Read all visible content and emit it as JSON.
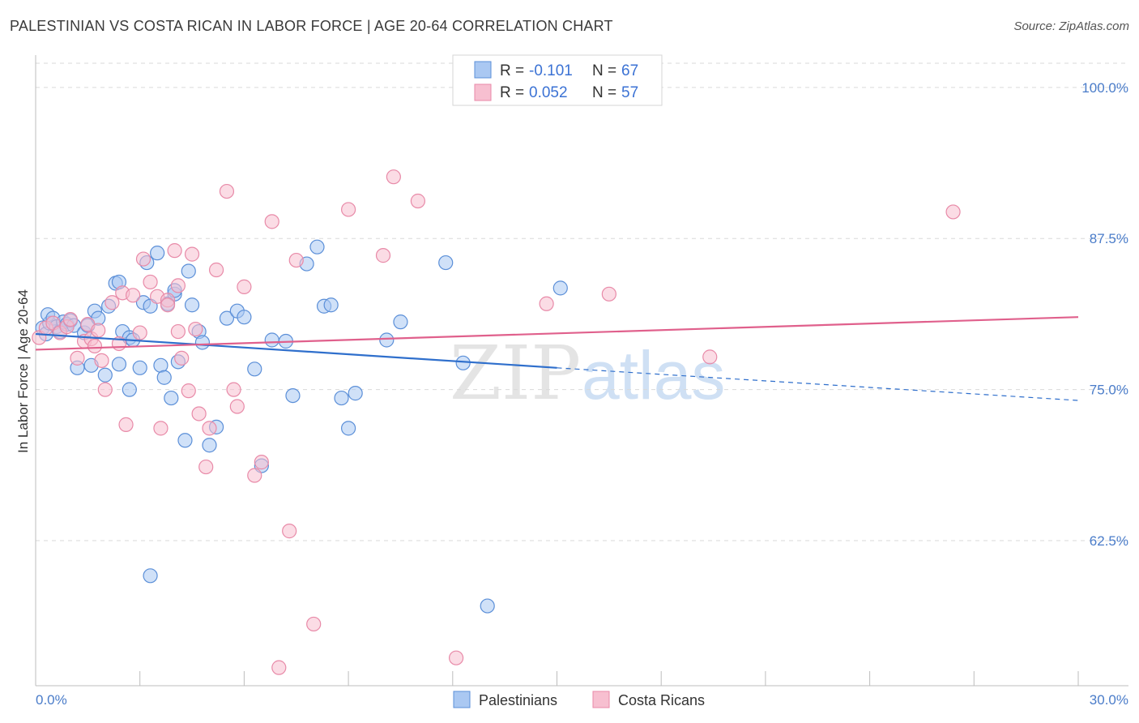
{
  "header": {
    "title": "PALESTINIAN VS COSTA RICAN IN LABOR FORCE | AGE 20-64 CORRELATION CHART",
    "source": "Source: ZipAtlas.com"
  },
  "watermark": {
    "zip": "ZIP",
    "atlas": "atlas"
  },
  "colors": {
    "blue_fill": "#aac8f2",
    "blue_stroke": "#5b8fd8",
    "blue_line": "#2f6fcc",
    "pink_fill": "#f7bfd0",
    "pink_stroke": "#e88aa8",
    "pink_line": "#e0608c",
    "grid": "#d9d9d9",
    "axis_label": "#4a7cc9"
  },
  "legend": {
    "rows": [
      {
        "r_label": "R =",
        "r_value": "-0.101",
        "n_label": "N =",
        "n_value": "67",
        "series": "blue"
      },
      {
        "r_label": "R =",
        "r_value": "0.052",
        "n_label": "N =",
        "n_value": "57",
        "series": "pink"
      }
    ]
  },
  "bottom_legend": [
    {
      "label": "Palestinians",
      "series": "blue"
    },
    {
      "label": "Costa Ricans",
      "series": "pink"
    }
  ],
  "chart_data": {
    "type": "scatter",
    "title": "PALESTINIAN VS COSTA RICAN IN LABOR FORCE | AGE 20-64 CORRELATION CHART",
    "xlabel": "",
    "ylabel": "In Labor Force | Age 20-64",
    "xlim": [
      0,
      30
    ],
    "ylim": [
      50.5,
      102
    ],
    "x_tick_labels": [
      "0.0%",
      "30.0%"
    ],
    "y_ticks": [
      62.5,
      75.0,
      87.5,
      100.0
    ],
    "y_tick_labels": [
      "62.5%",
      "75.0%",
      "87.5%",
      "100.0%"
    ],
    "grid": true,
    "series": [
      {
        "name": "Palestinians",
        "color": "blue",
        "r": -0.101,
        "n": 67,
        "trend": {
          "x0": 0,
          "y0": 79.6,
          "x1": 15,
          "y1": 76.8,
          "dash_x1": 30,
          "dash_y1": 74.1
        },
        "points": [
          [
            0.2,
            80.1
          ],
          [
            0.3,
            79.6
          ],
          [
            0.4,
            80.5
          ],
          [
            0.35,
            81.2
          ],
          [
            0.5,
            80.9
          ],
          [
            0.6,
            80.2
          ],
          [
            0.7,
            79.8
          ],
          [
            0.8,
            80.6
          ],
          [
            0.9,
            80.4
          ],
          [
            1.0,
            80.7
          ],
          [
            1.1,
            80.3
          ],
          [
            1.2,
            76.8
          ],
          [
            1.4,
            79.7
          ],
          [
            1.5,
            80.3
          ],
          [
            1.6,
            77.0
          ],
          [
            1.7,
            81.5
          ],
          [
            1.8,
            80.9
          ],
          [
            2.0,
            76.2
          ],
          [
            2.1,
            81.9
          ],
          [
            2.3,
            83.8
          ],
          [
            2.4,
            77.1
          ],
          [
            2.5,
            79.8
          ],
          [
            2.7,
            79.3
          ],
          [
            2.8,
            79.1
          ],
          [
            3.0,
            76.8
          ],
          [
            3.1,
            82.2
          ],
          [
            3.2,
            85.5
          ],
          [
            3.3,
            81.9
          ],
          [
            3.5,
            86.3
          ],
          [
            3.6,
            77.0
          ],
          [
            3.7,
            76.0
          ],
          [
            3.8,
            82.1
          ],
          [
            3.9,
            74.3
          ],
          [
            4.0,
            82.9
          ],
          [
            4.1,
            77.3
          ],
          [
            4.3,
            70.8
          ],
          [
            4.4,
            84.8
          ],
          [
            4.5,
            82.0
          ],
          [
            4.7,
            79.8
          ],
          [
            4.8,
            78.9
          ],
          [
            5.0,
            70.4
          ],
          [
            5.2,
            71.9
          ],
          [
            5.5,
            80.9
          ],
          [
            5.8,
            81.5
          ],
          [
            6.0,
            81.0
          ],
          [
            6.3,
            76.7
          ],
          [
            6.5,
            68.7
          ],
          [
            6.8,
            79.1
          ],
          [
            7.2,
            79.0
          ],
          [
            7.4,
            74.5
          ],
          [
            7.8,
            85.4
          ],
          [
            8.1,
            86.8
          ],
          [
            8.3,
            81.9
          ],
          [
            8.5,
            82.0
          ],
          [
            8.8,
            74.3
          ],
          [
            9.0,
            71.8
          ],
          [
            9.2,
            74.7
          ],
          [
            10.1,
            79.1
          ],
          [
            10.5,
            80.6
          ],
          [
            4.0,
            83.2
          ],
          [
            2.4,
            83.9
          ],
          [
            2.7,
            75.0
          ],
          [
            3.3,
            59.6
          ],
          [
            13.0,
            57.1
          ],
          [
            12.3,
            77.2
          ],
          [
            15.1,
            83.4
          ],
          [
            11.8,
            85.5
          ]
        ]
      },
      {
        "name": "Costa Ricans",
        "color": "pink",
        "r": 0.052,
        "n": 57,
        "trend": {
          "x0": 0,
          "y0": 78.3,
          "x1": 30,
          "y1": 81.0
        },
        "points": [
          [
            0.1,
            79.3
          ],
          [
            0.3,
            80.1
          ],
          [
            0.5,
            80.5
          ],
          [
            0.7,
            79.7
          ],
          [
            0.9,
            80.2
          ],
          [
            1.0,
            80.8
          ],
          [
            1.2,
            77.6
          ],
          [
            1.4,
            79.0
          ],
          [
            1.5,
            80.4
          ],
          [
            1.6,
            79.2
          ],
          [
            1.7,
            78.6
          ],
          [
            1.8,
            79.9
          ],
          [
            1.9,
            77.4
          ],
          [
            2.0,
            75.0
          ],
          [
            2.2,
            82.2
          ],
          [
            2.4,
            78.8
          ],
          [
            2.5,
            83.0
          ],
          [
            2.6,
            72.1
          ],
          [
            2.8,
            82.8
          ],
          [
            3.0,
            79.7
          ],
          [
            3.1,
            85.8
          ],
          [
            3.3,
            83.9
          ],
          [
            3.5,
            82.7
          ],
          [
            3.6,
            71.8
          ],
          [
            3.8,
            82.4
          ],
          [
            4.0,
            86.5
          ],
          [
            4.1,
            79.8
          ],
          [
            4.2,
            77.6
          ],
          [
            4.4,
            74.9
          ],
          [
            4.5,
            86.2
          ],
          [
            4.6,
            80.0
          ],
          [
            4.7,
            73.0
          ],
          [
            4.9,
            68.6
          ],
          [
            5.0,
            71.8
          ],
          [
            5.2,
            84.9
          ],
          [
            5.5,
            91.4
          ],
          [
            5.7,
            75.0
          ],
          [
            5.8,
            73.6
          ],
          [
            6.0,
            83.5
          ],
          [
            6.3,
            67.9
          ],
          [
            6.5,
            69.0
          ],
          [
            6.8,
            88.9
          ],
          [
            7.0,
            52.0
          ],
          [
            7.3,
            63.3
          ],
          [
            7.5,
            85.7
          ],
          [
            8.0,
            55.6
          ],
          [
            9.0,
            89.9
          ],
          [
            10.0,
            86.1
          ],
          [
            10.3,
            92.6
          ],
          [
            11.0,
            90.6
          ],
          [
            12.1,
            52.8
          ],
          [
            14.7,
            82.1
          ],
          [
            16.5,
            82.9
          ],
          [
            19.4,
            77.7
          ],
          [
            26.4,
            89.7
          ],
          [
            3.8,
            82.0
          ],
          [
            4.1,
            83.6
          ]
        ]
      }
    ]
  }
}
